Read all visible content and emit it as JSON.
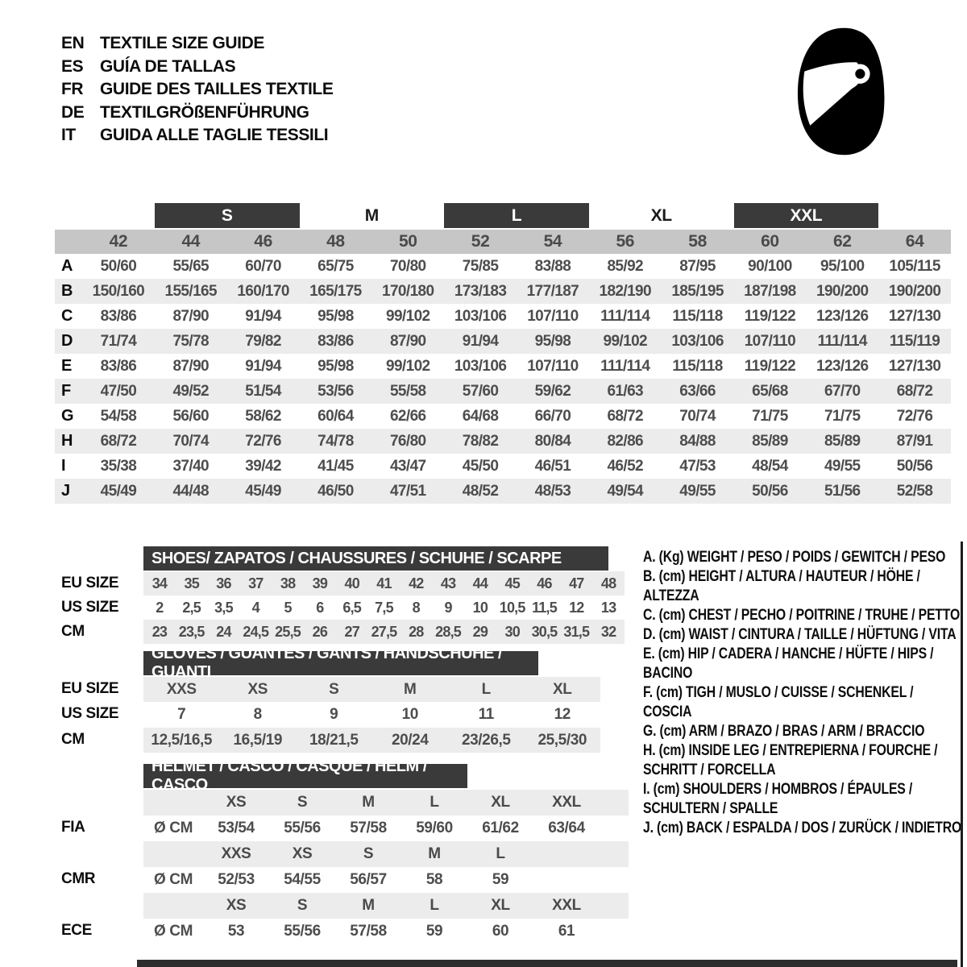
{
  "header": {
    "languages": [
      {
        "code": "EN",
        "label": "TEXTILE SIZE GUIDE"
      },
      {
        "code": "ES",
        "label": "GUÍA DE TALLAS"
      },
      {
        "code": "FR",
        "label": "GUIDE DES TAILLES TEXTILE"
      },
      {
        "code": "DE",
        "label": "TEXTILGRÖßENFÜHRUNG"
      },
      {
        "code": "IT",
        "label": "GUIDA ALLE TAGLIE TESSILI"
      }
    ],
    "logo": "racing-helmet"
  },
  "colors": {
    "dark_bar": "#3a3a3a",
    "size_band_gray": "#c6c6c6",
    "alt_row_gray": "#ececec",
    "number_text": "#4d4d4d",
    "black": "#0d0d0d"
  },
  "textile": {
    "groups": [
      {
        "label": "S",
        "dark": true,
        "start": 1,
        "span": 2
      },
      {
        "label": "M",
        "dark": false,
        "start": 3,
        "span": 2
      },
      {
        "label": "L",
        "dark": true,
        "start": 5,
        "span": 2
      },
      {
        "label": "XL",
        "dark": false,
        "start": 7,
        "span": 2
      },
      {
        "label": "XXL",
        "dark": true,
        "start": 9,
        "span": 2
      }
    ],
    "sizes": [
      "42",
      "44",
      "46",
      "48",
      "50",
      "52",
      "54",
      "56",
      "58",
      "60",
      "62",
      "64"
    ],
    "rows": [
      {
        "label": "A",
        "values": [
          "50/60",
          "55/65",
          "60/70",
          "65/75",
          "70/80",
          "75/85",
          "83/88",
          "85/92",
          "87/95",
          "90/100",
          "95/100",
          "105/115"
        ]
      },
      {
        "label": "B",
        "values": [
          "150/160",
          "155/165",
          "160/170",
          "165/175",
          "170/180",
          "173/183",
          "177/187",
          "182/190",
          "185/195",
          "187/198",
          "190/200",
          "190/200"
        ]
      },
      {
        "label": "C",
        "values": [
          "83/86",
          "87/90",
          "91/94",
          "95/98",
          "99/102",
          "103/106",
          "107/110",
          "111/114",
          "115/118",
          "119/122",
          "123/126",
          "127/130"
        ]
      },
      {
        "label": "D",
        "values": [
          "71/74",
          "75/78",
          "79/82",
          "83/86",
          "87/90",
          "91/94",
          "95/98",
          "99/102",
          "103/106",
          "107/110",
          "111/114",
          "115/119"
        ]
      },
      {
        "label": "E",
        "values": [
          "83/86",
          "87/90",
          "91/94",
          "95/98",
          "99/102",
          "103/106",
          "107/110",
          "111/114",
          "115/118",
          "119/122",
          "123/126",
          "127/130"
        ]
      },
      {
        "label": "F",
        "values": [
          "47/50",
          "49/52",
          "51/54",
          "53/56",
          "55/58",
          "57/60",
          "59/62",
          "61/63",
          "63/66",
          "65/68",
          "67/70",
          "68/72"
        ]
      },
      {
        "label": "G",
        "values": [
          "54/58",
          "56/60",
          "58/62",
          "60/64",
          "62/66",
          "64/68",
          "66/70",
          "68/72",
          "70/74",
          "71/75",
          "71/75",
          "72/76"
        ]
      },
      {
        "label": "H",
        "values": [
          "68/72",
          "70/74",
          "72/76",
          "74/78",
          "76/80",
          "78/82",
          "80/84",
          "82/86",
          "84/88",
          "85/89",
          "85/89",
          "87/91"
        ]
      },
      {
        "label": "I",
        "values": [
          "35/38",
          "37/40",
          "39/42",
          "41/45",
          "43/47",
          "45/50",
          "46/51",
          "46/52",
          "47/53",
          "48/54",
          "49/55",
          "50/56"
        ]
      },
      {
        "label": "J",
        "values": [
          "45/49",
          "44/48",
          "45/49",
          "46/50",
          "47/51",
          "48/52",
          "48/53",
          "49/54",
          "49/55",
          "50/56",
          "51/56",
          "52/58"
        ]
      }
    ]
  },
  "shoes": {
    "title": "SHOES/ ZAPATOS / CHAUSSURES / SCHUHE / SCARPE",
    "row_labels": [
      "EU SIZE",
      "US SIZE",
      "CM"
    ],
    "eu": [
      "34",
      "35",
      "36",
      "37",
      "38",
      "39",
      "40",
      "41",
      "42",
      "43",
      "44",
      "45",
      "46",
      "47",
      "48"
    ],
    "us": [
      "2",
      "2,5",
      "3,5",
      "4",
      "5",
      "6",
      "6,5",
      "7,5",
      "8",
      "9",
      "10",
      "10,5",
      "11,5",
      "12",
      "13"
    ],
    "cm": [
      "23",
      "23,5",
      "24",
      "24,5",
      "25,5",
      "26",
      "27",
      "27,5",
      "28",
      "28,5",
      "29",
      "30",
      "30,5",
      "31,5",
      "32"
    ]
  },
  "gloves": {
    "title": "GLOVES / GUANTES / GANTS / HANDSCHUHE / GUANTI",
    "row_labels": [
      "EU SIZE",
      "US SIZE",
      "CM"
    ],
    "eu": [
      "XXS",
      "XS",
      "S",
      "M",
      "L",
      "XL"
    ],
    "us": [
      "7",
      "8",
      "9",
      "10",
      "11",
      "12"
    ],
    "cm": [
      "12,5/16,5",
      "16,5/19",
      "18/21,5",
      "20/24",
      "23/26,5",
      "25,5/30"
    ]
  },
  "helmet": {
    "title": "HELMET / CASCO / CASQUE / HELM / CASCO",
    "unit": "Ø CM",
    "standards": [
      {
        "label": "FIA",
        "sizes": [
          "XS",
          "S",
          "M",
          "L",
          "XL",
          "XXL"
        ],
        "values": [
          "53/54",
          "55/56",
          "57/58",
          "59/60",
          "61/62",
          "63/64"
        ]
      },
      {
        "label": "CMR",
        "sizes": [
          "XXS",
          "XS",
          "S",
          "M",
          "L"
        ],
        "values": [
          "52/53",
          "54/55",
          "56/57",
          "58",
          "59"
        ]
      },
      {
        "label": "ECE",
        "sizes": [
          "XS",
          "S",
          "M",
          "L",
          "XL",
          "XXL"
        ],
        "values": [
          "53",
          "55/56",
          "57/58",
          "59",
          "60",
          "61"
        ]
      }
    ]
  },
  "legend": [
    "A. (Kg) WEIGHT / PESO / POIDS / GEWITCH / PESO",
    "B. (cm) HEIGHT / ALTURA / HAUTEUR / HÖHE / ALTEZZA",
    "C. (cm) CHEST / PECHO / POITRINE / TRUHE / PETTO",
    "D. (cm) WAIST / CINTURA / TAILLE / HÜFTUNG / VITA",
    "E. (cm) HIP / CADERA / HANCHE / HÜFTE / HIPS / BACINO",
    "F. (cm) TIGH / MUSLO / CUISSE / SCHENKEL / COSCIA",
    "G. (cm) ARM / BRAZO / BRAS / ARM / BRACCIO",
    "H. (cm) INSIDE LEG / ENTREPIERNA / FOURCHE / SCHRITT / FORCELLA",
    "I. (cm) SHOULDERS / HOMBROS / ÉPAULES / SCHULTERN / SPALLE",
    "J. (cm) BACK / ESPALDA / DOS / ZURÜCK / INDIETRO"
  ]
}
